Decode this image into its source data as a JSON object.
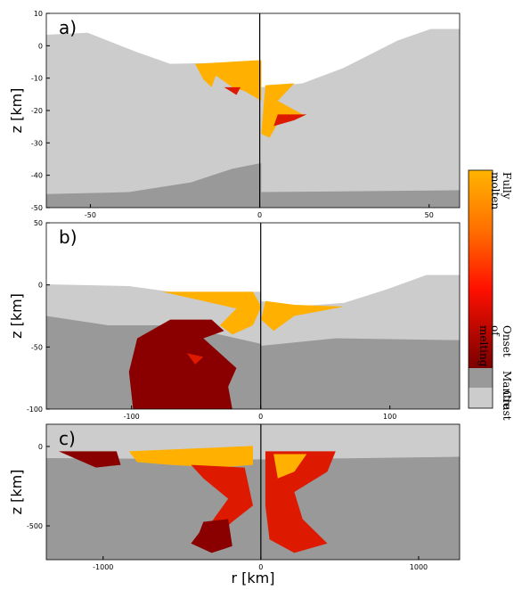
{
  "chart_data": [
    {
      "type": "image",
      "label": "a)",
      "ylabel": "z [km]",
      "xlim": [
        -63,
        59
      ],
      "xticks": [
        -50,
        0,
        50
      ],
      "ylim": [
        -50,
        10
      ],
      "yticks": [
        10,
        0,
        -10,
        -20,
        -30,
        -40,
        -50
      ]
    },
    {
      "type": "image",
      "label": "b)",
      "ylabel": "z [km]",
      "xlim": [
        -166,
        154
      ],
      "xticks": [
        -100,
        0,
        100
      ],
      "ylim": [
        -100,
        50
      ],
      "yticks": [
        50,
        0,
        -50,
        -100
      ]
    },
    {
      "type": "image",
      "label": "c)",
      "ylabel": "z [km]",
      "xlabel": "r [km]",
      "xlim": [
        -1360,
        1260
      ],
      "xticks": [
        -1000,
        0,
        1000
      ],
      "ylim": [
        -713,
        140
      ],
      "yticks": [
        0,
        -500
      ]
    }
  ],
  "colorbar": {
    "labels": [
      "Fully molten",
      "Onset of melting",
      "Mantle",
      "Crust"
    ]
  }
}
